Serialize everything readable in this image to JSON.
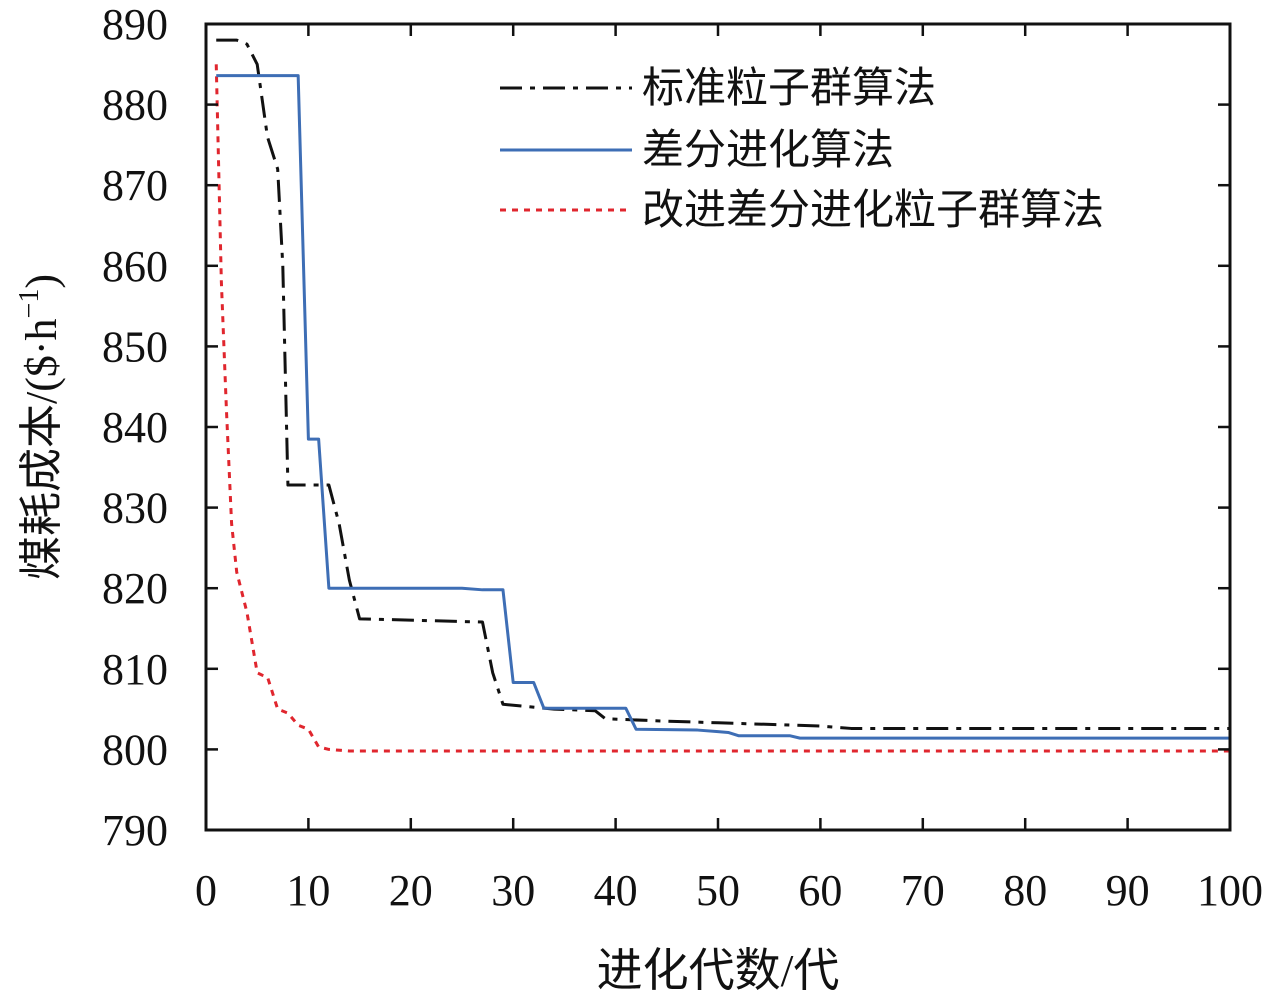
{
  "chart_data": {
    "type": "line",
    "title": "",
    "xlabel": "进化代数/代",
    "ylabel": "煤耗成本/($·h",
    "ylabel_superscript": "−1",
    "ylabel_suffix": ")",
    "xlim": [
      0,
      100
    ],
    "ylim": [
      790,
      890
    ],
    "xticks": [
      0,
      10,
      20,
      30,
      40,
      50,
      60,
      70,
      80,
      90,
      100
    ],
    "yticks": [
      790,
      800,
      810,
      820,
      830,
      840,
      850,
      860,
      870,
      880,
      890
    ],
    "grid": false,
    "legend_position": "top-right",
    "series": [
      {
        "name": "标准粒子群算法",
        "color": "#111111",
        "style": "dashdot",
        "x": [
          1,
          3,
          4,
          5,
          6,
          7,
          7.5,
          8,
          12,
          13,
          14,
          15,
          27,
          28,
          29,
          34,
          38,
          39,
          45,
          50,
          55,
          60,
          63,
          70,
          80,
          90,
          100
        ],
        "values": [
          888,
          888,
          887.5,
          885,
          876,
          872,
          860,
          832.8,
          832.8,
          828,
          821,
          816.2,
          815.8,
          809.5,
          805.6,
          805,
          804.8,
          803.8,
          803.5,
          803.3,
          803.1,
          802.9,
          802.6,
          802.6,
          802.6,
          802.6,
          802.6
        ]
      },
      {
        "name": "差分进化算法",
        "color": "#3e6eb5",
        "style": "solid",
        "x": [
          1,
          9,
          10,
          11,
          12,
          25,
          27,
          29,
          30,
          32,
          33,
          40,
          41,
          42,
          48,
          50,
          51,
          52,
          57,
          58,
          100
        ],
        "values": [
          883.6,
          883.6,
          838.5,
          838.5,
          820,
          820,
          819.8,
          819.8,
          808.3,
          808.3,
          805.1,
          805.1,
          805.1,
          802.5,
          802.4,
          802.2,
          802.1,
          801.7,
          801.7,
          801.4,
          801.4
        ]
      },
      {
        "name": "改进差分进化粒子群算法",
        "color": "#e0262e",
        "style": "dotted",
        "x": [
          1,
          1.5,
          2,
          2.5,
          3,
          4,
          5,
          5.5,
          6,
          7,
          8,
          9,
          10,
          11,
          12,
          14,
          20,
          100
        ],
        "values": [
          885,
          858,
          842,
          828,
          822,
          817,
          809.5,
          809.2,
          809,
          805,
          804.5,
          803,
          802.5,
          800.3,
          800,
          799.8,
          799.8,
          799.8
        ]
      }
    ]
  }
}
